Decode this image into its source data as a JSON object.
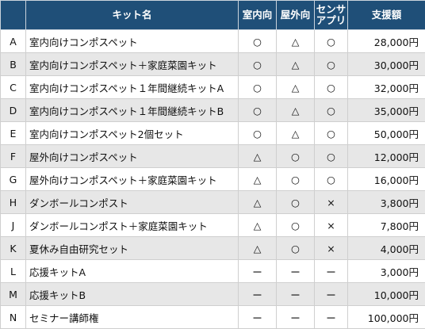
{
  "headers": {
    "id": "",
    "name": "キット名",
    "indoor": "室内向",
    "outdoor": "屋外向",
    "sensor_line1": "センサ",
    "sensor_line2": "アプリ",
    "price": "支援額"
  },
  "rows": [
    {
      "id": "A",
      "name": "室内向けコンポスペット",
      "indoor": "○",
      "outdoor": "△",
      "sensor": "○",
      "price": "28,000円"
    },
    {
      "id": "B",
      "name": "室内向けコンポスペット＋家庭菜園キット",
      "indoor": "○",
      "outdoor": "△",
      "sensor": "○",
      "price": "30,000円"
    },
    {
      "id": "C",
      "name": "室内向けコンポスペット１年間継続キットA",
      "indoor": "○",
      "outdoor": "△",
      "sensor": "○",
      "price": "32,000円"
    },
    {
      "id": "D",
      "name": "室内向けコンポスペット１年間継続キットB",
      "indoor": "○",
      "outdoor": "△",
      "sensor": "○",
      "price": "35,000円"
    },
    {
      "id": "E",
      "name": "室内向けコンポスペット2個セット",
      "indoor": "○",
      "outdoor": "△",
      "sensor": "○",
      "price": "50,000円"
    },
    {
      "id": "F",
      "name": "屋外向けコンポスペット",
      "indoor": "△",
      "outdoor": "○",
      "sensor": "○",
      "price": "12,000円"
    },
    {
      "id": "G",
      "name": "屋外向けコンポスペット＋家庭菜園キット",
      "indoor": "△",
      "outdoor": "○",
      "sensor": "○",
      "price": "16,000円"
    },
    {
      "id": "H",
      "name": "ダンボールコンポスト",
      "indoor": "△",
      "outdoor": "○",
      "sensor": "×",
      "price": "3,800円"
    },
    {
      "id": "J",
      "name": "ダンボールコンポスト＋家庭菜園キット",
      "indoor": "△",
      "outdoor": "○",
      "sensor": "×",
      "price": "7,800円"
    },
    {
      "id": "K",
      "name": "夏休み自由研究セット",
      "indoor": "△",
      "outdoor": "○",
      "sensor": "×",
      "price": "4,000円"
    },
    {
      "id": "L",
      "name": "応援キットA",
      "indoor": "ー",
      "outdoor": "ー",
      "sensor": "ー",
      "price": "3,000円"
    },
    {
      "id": "M",
      "name": "応援キットB",
      "indoor": "ー",
      "outdoor": "ー",
      "sensor": "ー",
      "price": "10,000円"
    },
    {
      "id": "N",
      "name": "セミナー講師権",
      "indoor": "ー",
      "outdoor": "ー",
      "sensor": "ー",
      "price": "100,000円"
    }
  ]
}
